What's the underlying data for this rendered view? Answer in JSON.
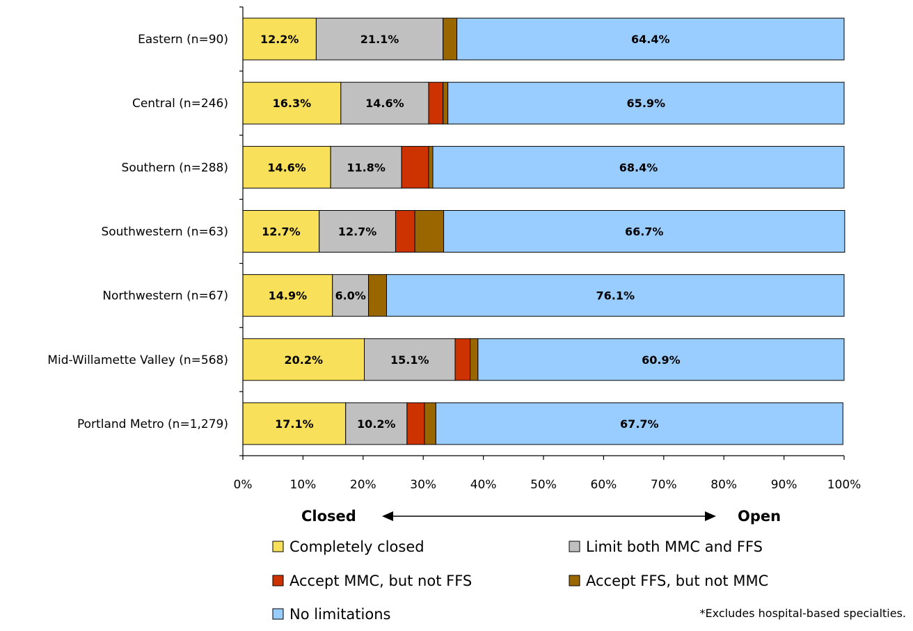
{
  "chart_data": {
    "type": "bar",
    "orientation": "horizontal",
    "stacked": true,
    "categories": [
      "Eastern (n=90)",
      "Central (n=246)",
      "Southern (n=288)",
      "Southwestern (n=63)",
      "Northwestern (n=67)",
      "Mid-Willamette Valley (n=568)",
      "Portland Metro (n=1,279)"
    ],
    "series": [
      {
        "name": "Completely closed",
        "color": "#f9e05a",
        "values": [
          12.2,
          16.3,
          14.6,
          12.7,
          14.9,
          20.2,
          17.1
        ],
        "labels": [
          "12.2%",
          "16.3%",
          "14.6%",
          "12.7%",
          "14.9%",
          "20.2%",
          "17.1%"
        ]
      },
      {
        "name": "Limit both MMC and FFS",
        "color": "#c0c0c0",
        "values": [
          21.1,
          14.6,
          11.8,
          12.7,
          6.0,
          15.1,
          10.2
        ],
        "labels": [
          "21.1%",
          "14.6%",
          "11.8%",
          "12.7%",
          "6.0%",
          "15.1%",
          "10.2%"
        ]
      },
      {
        "name": "Accept MMC, but not FFS",
        "color": "#cc3300",
        "values": [
          0.0,
          2.4,
          4.5,
          3.2,
          0.0,
          2.5,
          2.9
        ],
        "labels": [
          "",
          "",
          "",
          "",
          "",
          "",
          ""
        ]
      },
      {
        "name": "Accept FFS, but not MMC",
        "color": "#996600",
        "values": [
          2.3,
          0.8,
          0.7,
          4.8,
          3.0,
          1.3,
          1.9
        ],
        "labels": [
          "",
          "",
          "",
          "",
          "",
          "",
          ""
        ]
      },
      {
        "name": "No limitations",
        "color": "#99ccff",
        "values": [
          64.4,
          65.9,
          68.4,
          66.7,
          76.1,
          60.9,
          67.7
        ],
        "labels": [
          "64.4%",
          "65.9%",
          "68.4%",
          "66.7%",
          "76.1%",
          "60.9%",
          "67.7%"
        ]
      }
    ],
    "xlim": [
      0,
      100
    ],
    "xticks": [
      "0%",
      "10%",
      "20%",
      "30%",
      "40%",
      "50%",
      "60%",
      "70%",
      "80%",
      "90%",
      "100%"
    ],
    "grid": false,
    "legend_position": "bottom",
    "direction_labels": {
      "left": "Closed",
      "right": "Open"
    },
    "footnote": "*Excludes hospital-based specialties."
  }
}
